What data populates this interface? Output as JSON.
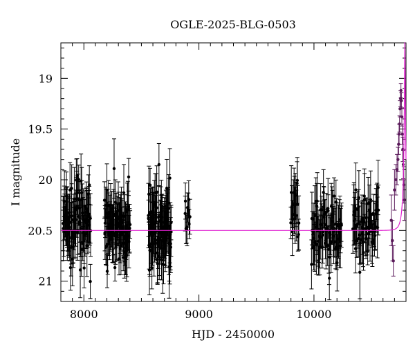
{
  "chart_data": {
    "type": "scatter",
    "title": "OGLE-2025-BLG-0503",
    "xlabel": "HJD - 2450000",
    "ylabel": "I magnitude",
    "xlim": [
      7800,
      10800
    ],
    "ylim": [
      21.2,
      18.65
    ],
    "y_inverted": true,
    "grid": false,
    "legend": "none",
    "x_ticks": [
      {
        "value": 8000,
        "label": "8000"
      },
      {
        "value": 9000,
        "label": "9000"
      },
      {
        "value": 10000,
        "label": "10000"
      }
    ],
    "y_ticks": [
      {
        "value": 19,
        "label": "19"
      },
      {
        "value": 19.5,
        "label": "19.5"
      },
      {
        "value": 20,
        "label": "20"
      },
      {
        "value": 20.5,
        "label": "20.5"
      },
      {
        "value": 21,
        "label": "21"
      }
    ],
    "x_minor_step": 100,
    "y_minor_step": 0.1,
    "colors": {
      "points": "#000000",
      "model": "#e020d0",
      "peak_points": "#5a1a5a"
    },
    "season_groups": [
      {
        "x_start": 7820,
        "x_end": 8060,
        "center_mag": 20.42,
        "spread_mag": 0.34,
        "err_min": 0.14,
        "err_max": 0.32,
        "n_points": 90
      },
      {
        "x_start": 8180,
        "x_end": 8400,
        "center_mag": 20.48,
        "spread_mag": 0.28,
        "err_min": 0.13,
        "err_max": 0.3,
        "n_points": 95
      },
      {
        "x_start": 8560,
        "x_end": 8760,
        "center_mag": 20.48,
        "spread_mag": 0.3,
        "err_min": 0.14,
        "err_max": 0.32,
        "n_points": 95
      },
      {
        "x_start": 8880,
        "x_end": 8920,
        "center_mag": 20.4,
        "spread_mag": 0.16,
        "err_min": 0.13,
        "err_max": 0.2,
        "n_points": 10
      },
      {
        "x_start": 9800,
        "x_end": 9870,
        "center_mag": 20.3,
        "spread_mag": 0.28,
        "err_min": 0.14,
        "err_max": 0.3,
        "n_points": 20
      },
      {
        "x_start": 9980,
        "x_end": 10240,
        "center_mag": 20.5,
        "spread_mag": 0.28,
        "err_min": 0.13,
        "err_max": 0.3,
        "n_points": 75
      },
      {
        "x_start": 10340,
        "x_end": 10560,
        "center_mag": 20.45,
        "spread_mag": 0.28,
        "err_min": 0.13,
        "err_max": 0.3,
        "n_points": 60
      }
    ],
    "peak_points": [
      {
        "x": 10672,
        "y": 20.4,
        "err": 0.25
      },
      {
        "x": 10682,
        "y": 20.6,
        "err": 0.2
      },
      {
        "x": 10690,
        "y": 20.8,
        "err": 0.15
      },
      {
        "x": 10700,
        "y": 20.1,
        "err": 0.2
      },
      {
        "x": 10712,
        "y": 20.0,
        "err": 0.15
      },
      {
        "x": 10722,
        "y": 19.9,
        "err": 0.15
      },
      {
        "x": 10730,
        "y": 19.8,
        "err": 0.12
      },
      {
        "x": 10736,
        "y": 19.65,
        "err": 0.1
      },
      {
        "x": 10740,
        "y": 19.55,
        "err": 0.1
      },
      {
        "x": 10744,
        "y": 19.45,
        "err": 0.08
      },
      {
        "x": 10748,
        "y": 19.3,
        "err": 0.08
      },
      {
        "x": 10752,
        "y": 19.2,
        "err": 0.08
      },
      {
        "x": 10756,
        "y": 19.12,
        "err": 0.07
      },
      {
        "x": 10760,
        "y": 19.22,
        "err": 0.08
      },
      {
        "x": 10764,
        "y": 19.38,
        "err": 0.09
      },
      {
        "x": 10768,
        "y": 19.55,
        "err": 0.1
      },
      {
        "x": 10772,
        "y": 19.7,
        "err": 0.12
      },
      {
        "x": 10776,
        "y": 19.85,
        "err": 0.14
      },
      {
        "x": 10781,
        "y": 20.05,
        "err": 0.18
      },
      {
        "x": 10786,
        "y": 20.2,
        "err": 0.2
      }
    ],
    "model": {
      "baseline_mag": 20.5,
      "t0": 10790,
      "u0": 0.072,
      "tE": 36,
      "fs": 0.35
    }
  }
}
